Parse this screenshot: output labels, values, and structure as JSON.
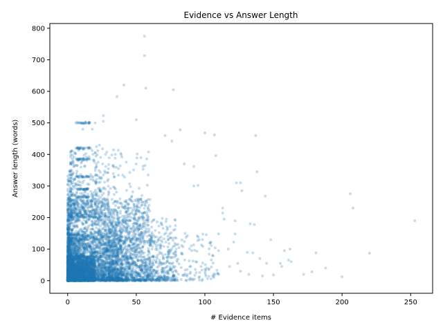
{
  "chart_data": {
    "type": "scatter",
    "title": "Evidence vs Answer Length",
    "xlabel": "# Evidence items",
    "ylabel": "Answer length (words)",
    "xlim": [
      -13,
      266
    ],
    "ylim": [
      -40,
      815
    ],
    "xticks": [
      0,
      50,
      100,
      150,
      200,
      250
    ],
    "yticks": [
      0,
      100,
      200,
      300,
      400,
      500,
      600,
      700,
      800
    ],
    "grid": false,
    "marker_color": "#1f77b4",
    "marker_alpha": 0.25,
    "outliers": [
      [
        56,
        775
      ],
      [
        56,
        713
      ],
      [
        57,
        610
      ],
      [
        77,
        605
      ],
      [
        41,
        620
      ],
      [
        36,
        583
      ],
      [
        26,
        523
      ],
      [
        26,
        505
      ],
      [
        50,
        510
      ],
      [
        13,
        503
      ],
      [
        6,
        500
      ],
      [
        10,
        500
      ],
      [
        16,
        500
      ],
      [
        20,
        500
      ],
      [
        11,
        480
      ],
      [
        18,
        480
      ],
      [
        82,
        478
      ],
      [
        100,
        468
      ],
      [
        107,
        462
      ],
      [
        137,
        460
      ],
      [
        71,
        460
      ],
      [
        76,
        442
      ],
      [
        108,
        396
      ],
      [
        92,
        362
      ],
      [
        85,
        370
      ],
      [
        92,
        300
      ],
      [
        138,
        345
      ],
      [
        127,
        285
      ],
      [
        144,
        268
      ],
      [
        123,
        310
      ],
      [
        126,
        310
      ],
      [
        95,
        302
      ],
      [
        113,
        230
      ],
      [
        114,
        195
      ],
      [
        122,
        190
      ],
      [
        113,
        214
      ],
      [
        148,
        130
      ],
      [
        133,
        180
      ],
      [
        136,
        178
      ],
      [
        122,
        148
      ],
      [
        121,
        122
      ],
      [
        131,
        90
      ],
      [
        135,
        88
      ],
      [
        140,
        70
      ],
      [
        145,
        55
      ],
      [
        158,
        95
      ],
      [
        162,
        100
      ],
      [
        161,
        65
      ],
      [
        155,
        55
      ],
      [
        163,
        60
      ],
      [
        156,
        45
      ],
      [
        181,
        88
      ],
      [
        172,
        20
      ],
      [
        178,
        28
      ],
      [
        188,
        40
      ],
      [
        200,
        12
      ],
      [
        206,
        275
      ],
      [
        208,
        230
      ],
      [
        220,
        87
      ],
      [
        253,
        190
      ],
      [
        117,
        100
      ],
      [
        110,
        95
      ],
      [
        104,
        120
      ],
      [
        96,
        130
      ],
      [
        118,
        45
      ],
      [
        126,
        30
      ],
      [
        132,
        20
      ],
      [
        142,
        15
      ],
      [
        150,
        18
      ],
      [
        110,
        20
      ],
      [
        103,
        35
      ],
      [
        124,
        55
      ]
    ],
    "clusters": [
      {
        "x": [
          0,
          60
        ],
        "y": [
          0,
          260
        ],
        "n": 2400
      },
      {
        "x": [
          0,
          20
        ],
        "y": [
          0,
          80
        ],
        "n": 2000
      },
      {
        "x": [
          0,
          40
        ],
        "y": [
          0,
          150
        ],
        "n": 1500
      },
      {
        "x": [
          2,
          30
        ],
        "y": [
          200,
          420
        ],
        "n": 350
      },
      {
        "x": [
          30,
          80
        ],
        "y": [
          0,
          200
        ],
        "n": 600
      },
      {
        "x": [
          60,
          110
        ],
        "y": [
          0,
          150
        ],
        "n": 250
      },
      {
        "x": [
          0,
          3
        ],
        "y": [
          0,
          350
        ],
        "n": 200
      },
      {
        "x": [
          20,
          60
        ],
        "y": [
          150,
          430
        ],
        "n": 200
      }
    ],
    "bands": [
      {
        "x": [
          6,
          16
        ],
        "y": 500,
        "n": 20
      },
      {
        "x": [
          6,
          16
        ],
        "y": 420,
        "n": 25
      },
      {
        "x": [
          6,
          16
        ],
        "y": 385,
        "n": 25
      },
      {
        "x": [
          6,
          16
        ],
        "y": 330,
        "n": 25
      },
      {
        "x": [
          6,
          16
        ],
        "y": 290,
        "n": 25
      },
      {
        "x": [
          6,
          16
        ],
        "y": 265,
        "n": 25
      }
    ]
  }
}
